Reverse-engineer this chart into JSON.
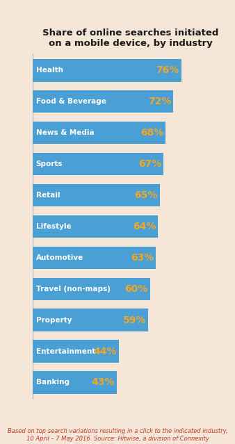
{
  "title": "Share of online searches initiated\non a mobile device, by industry",
  "categories": [
    "Health",
    "Food & Beverage",
    "News & Media",
    "Sports",
    "Retail",
    "Lifestyle",
    "Automotive",
    "Travel (non-maps)",
    "Property",
    "Entertainment",
    "Banking"
  ],
  "values": [
    76,
    72,
    68,
    67,
    65,
    64,
    63,
    60,
    59,
    44,
    43
  ],
  "bar_color": "#4a9fd4",
  "value_color": "#f5a623",
  "label_color": "#ffffff",
  "background_color": "#f5e6d8",
  "title_color": "#1a1a1a",
  "footnote_color": "#c0392b",
  "footnote": "Based on top search variations resulting in a click to the indicated industry,\n10 April – 7 May 2016. Source: Hitwise, a division of Connexity",
  "xlim": [
    0,
    100
  ],
  "bar_height": 0.72,
  "title_fontsize": 9.5,
  "label_fontsize": 7.5,
  "value_fontsize": 10,
  "footnote_fontsize": 6.0
}
